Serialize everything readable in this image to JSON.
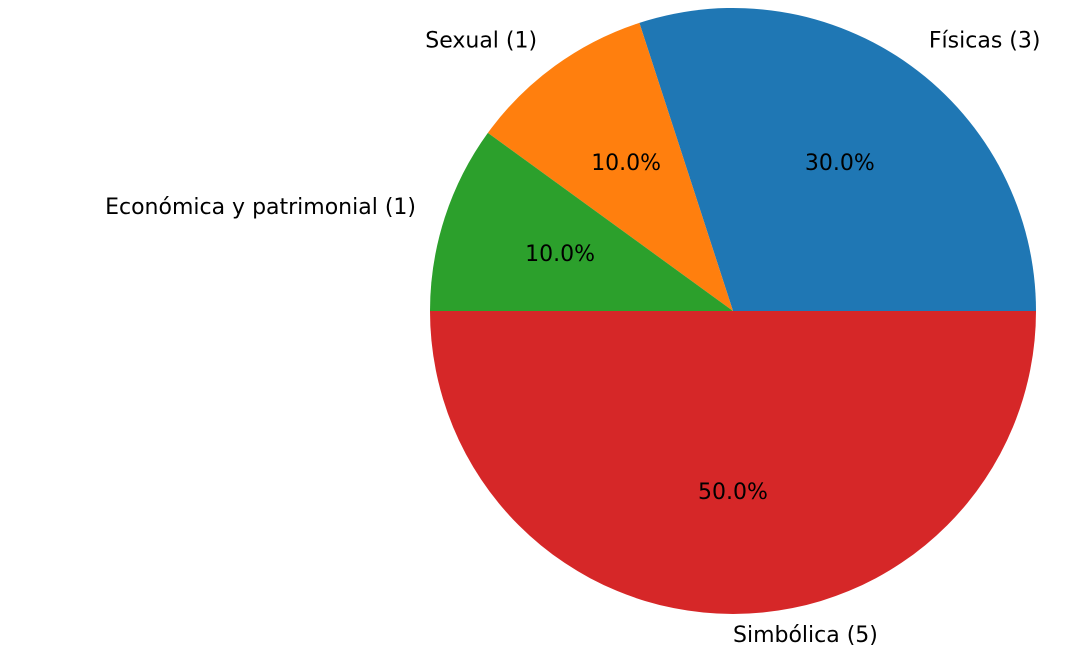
{
  "chart_data": {
    "type": "pie",
    "categories": [
      "Físicas (3)",
      "Sexual (1)",
      "Económica y patrimonial (1)",
      "Simbólica (5)"
    ],
    "values": [
      30,
      10,
      10,
      50
    ],
    "value_labels": [
      "30.0%",
      "10.0%",
      "10.0%",
      "50.0%"
    ],
    "colors": [
      "#1f77b4",
      "#ff7f0e",
      "#2ca02c",
      "#d62728"
    ]
  }
}
